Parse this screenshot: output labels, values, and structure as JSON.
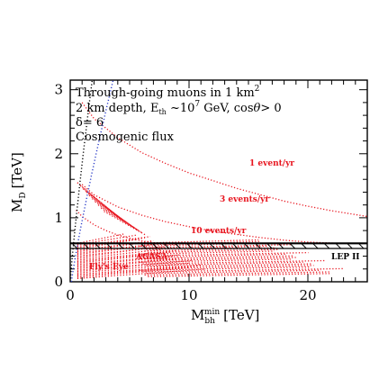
{
  "chart_data": {
    "type": "line",
    "title": "",
    "xlabel": "M",
    "xlabel_sub": "bh",
    "xlabel_sup": "min",
    "xlabel_unit": "[TeV]",
    "ylabel": "M",
    "ylabel_sub": "D",
    "ylabel_unit": "[TeV]",
    "xlim": [
      0,
      25
    ],
    "ylim": [
      0,
      3.15
    ],
    "x_ticks": [
      "0",
      "10",
      "20"
    ],
    "y_ticks": [
      "0",
      "1",
      "2",
      "3"
    ],
    "grid": false,
    "annotation": {
      "line1_a": "Through-going muons in 1 km",
      "line1_sup": "2",
      "line2_a": "2 km depth, E",
      "line2_sub": "th",
      "line2_b": " ~10",
      "line2_sup": "7",
      "line2_c": " GeV, cos",
      "line2_theta": "θ",
      "line2_d": "> 0",
      "line3": "δ= 6",
      "line4": "Cosmogenic flux"
    },
    "series": [
      {
        "name": "1 event/yr",
        "x": [
          1,
          2,
          4,
          6,
          8,
          10,
          12,
          14,
          16,
          18,
          20,
          22,
          25
        ],
        "y": [
          2.8,
          2.55,
          2.25,
          2.02,
          1.85,
          1.7,
          1.58,
          1.46,
          1.36,
          1.26,
          1.18,
          1.11,
          1.02
        ]
      },
      {
        "name": "3 events/yr",
        "x": [
          1,
          2,
          4,
          6,
          8,
          10,
          12,
          14,
          16,
          18,
          20,
          22.5
        ],
        "y": [
          1.52,
          1.36,
          1.17,
          1.04,
          0.94,
          0.86,
          0.79,
          0.74,
          0.69,
          0.65,
          0.62,
          0.6
        ]
      },
      {
        "name": "10 events/yr",
        "x": [
          0.5,
          1,
          2,
          3,
          4,
          5,
          6,
          7,
          8,
          9
        ],
        "y": [
          1.12,
          1.02,
          0.89,
          0.8,
          0.73,
          0.68,
          0.64,
          0.61,
          0.59,
          0.58
        ]
      }
    ],
    "lep_limit": {
      "label": "LEP II",
      "y": 0.6
    },
    "agasa_region": {
      "label": "AGASA"
    },
    "flys_eye_region": {
      "label": "Fly's Eye"
    },
    "colors": {
      "curves": "#e8141e",
      "frame": "#000000",
      "limit_line": "#000000",
      "boundary_line": "#2a3cc8"
    }
  }
}
